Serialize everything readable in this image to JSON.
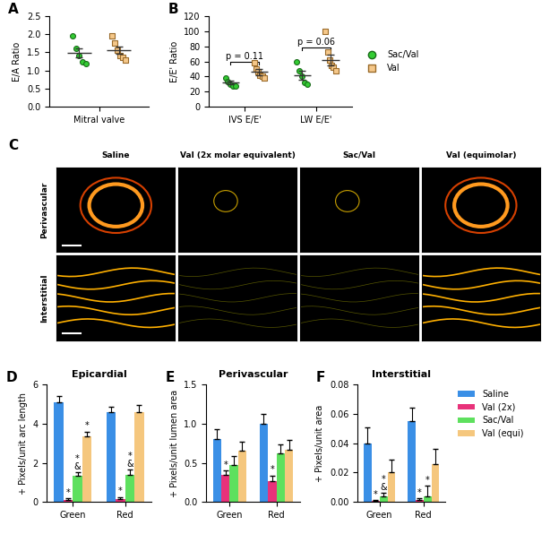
{
  "chart_data": [
    {
      "panel": "A",
      "type": "scatter",
      "categories": [
        "Mitral valve"
      ],
      "y_label": "E/A Ratio",
      "ylim": [
        0,
        2.5
      ],
      "yticks": [
        {
          "value": 0,
          "label": "0.0"
        },
        0.5,
        {
          "value": 1,
          "label": "1.0"
        },
        1.5,
        {
          "value": 2,
          "label": "2.0"
        },
        2.5
      ],
      "series": [
        {
          "name": "Sac/Val",
          "color": "#33cc33",
          "marker": "circle",
          "values": [
            [
              1.95,
              1.6,
              1.4,
              1.25,
              1.2
            ]
          ],
          "mean": [
            1.48
          ],
          "error": [
            0.13
          ]
        },
        {
          "name": "Val",
          "color": "#f5c88a",
          "marker": "square",
          "values": [
            [
              1.95,
              1.75,
              1.55,
              1.4,
              1.35,
              1.3
            ]
          ],
          "mean": [
            1.55
          ],
          "error": [
            0.1
          ]
        }
      ]
    },
    {
      "panel": "B",
      "type": "scatter",
      "categories": [
        "IVS E/E'",
        "LW E/E'"
      ],
      "y_label": "E/E' Ratio",
      "ylim": [
        0,
        120
      ],
      "yticks": [
        0,
        20,
        40,
        60,
        80,
        100,
        120
      ],
      "legend": "right",
      "annotations": [
        {
          "text": "p = 0.11",
          "category": 0
        },
        {
          "text": "p = 0.06",
          "category": 1
        }
      ],
      "series": [
        {
          "name": "Sac/Val",
          "color": "#33cc33",
          "marker": "circle",
          "values": [
            [
              38,
              33,
              30,
              28,
              27
            ],
            [
              60,
              48,
              40,
              32,
              30
            ]
          ],
          "mean": [
            32,
            42
          ],
          "error": [
            2.5,
            6
          ]
        },
        {
          "name": "Val",
          "color": "#f5c88a",
          "marker": "square",
          "values": [
            [
              58,
              50,
              47,
              42,
              40,
              38
            ],
            [
              100,
              72,
              62,
              55,
              52,
              48
            ]
          ],
          "mean": [
            46,
            62
          ],
          "error": [
            4,
            7
          ]
        }
      ]
    },
    {
      "panel": "D",
      "type": "bar",
      "title": "Epicardial",
      "y_label": "+ Pixels/unit arc length",
      "categories": [
        "Green",
        "Red"
      ],
      "ylim": [
        0,
        6
      ],
      "yticks": [
        0,
        2,
        4,
        6
      ],
      "series": [
        {
          "name": "Saline",
          "color": "#3a8fe6",
          "values": [
            5.1,
            4.6
          ],
          "error": [
            0.3,
            0.25
          ],
          "sig": [
            null,
            null
          ]
        },
        {
          "name": "Val (2x)",
          "color": "#e8327a",
          "values": [
            0.1,
            0.15
          ],
          "error": [
            0.1,
            0.1
          ],
          "sig": [
            [
              "*"
            ],
            [
              "*"
            ]
          ]
        },
        {
          "name": "Sac/Val",
          "color": "#5ee05e",
          "values": [
            1.35,
            1.4
          ],
          "error": [
            0.15,
            0.25
          ],
          "sig": [
            [
              "*",
              "&"
            ],
            [
              "*",
              "&"
            ]
          ]
        },
        {
          "name": "Val (equi)",
          "color": "#f5c77e",
          "values": [
            3.35,
            4.6
          ],
          "error": [
            0.25,
            0.35
          ],
          "sig": [
            [
              "*"
            ],
            null
          ]
        }
      ]
    },
    {
      "panel": "E",
      "type": "bar",
      "title": "Perivascular",
      "y_label": "+ Pixels/unit lumen area",
      "categories": [
        "Green",
        "Red"
      ],
      "ylim": [
        0,
        1.5
      ],
      "yticks": [
        {
          "value": 0,
          "label": "0.0"
        },
        0.5,
        {
          "value": 1,
          "label": "1.0"
        },
        1.5
      ],
      "series": [
        {
          "name": "Saline",
          "color": "#3a8fe6",
          "values": [
            0.8,
            1.0
          ],
          "error": [
            0.13,
            0.12
          ],
          "sig": [
            null,
            null
          ]
        },
        {
          "name": "Val (2x)",
          "color": "#e8327a",
          "values": [
            0.35,
            0.27
          ],
          "error": [
            0.05,
            0.07
          ],
          "sig": [
            [
              "*"
            ],
            [
              "*"
            ]
          ]
        },
        {
          "name": "Sac/Val",
          "color": "#5ee05e",
          "values": [
            0.47,
            0.62
          ],
          "error": [
            0.12,
            0.11
          ],
          "sig": [
            null,
            null
          ]
        },
        {
          "name": "Val (equi)",
          "color": "#f5c77e",
          "values": [
            0.65,
            0.67
          ],
          "error": [
            0.12,
            0.12
          ],
          "sig": [
            null,
            null
          ]
        }
      ]
    },
    {
      "panel": "F",
      "type": "bar",
      "title": "Interstitial",
      "y_label": "+ Pixels/unit area",
      "categories": [
        "Green",
        "Red"
      ],
      "ylim": [
        0,
        0.08
      ],
      "yticks": [
        {
          "value": 0,
          "label": "0.00"
        },
        0.02,
        0.04,
        0.06,
        {
          "value": 0.08,
          "label": "0.08"
        }
      ],
      "legend": "right",
      "series": [
        {
          "name": "Saline",
          "color": "#3a8fe6",
          "values": [
            0.04,
            0.055
          ],
          "error": [
            0.011,
            0.009
          ],
          "sig": [
            null,
            null
          ]
        },
        {
          "name": "Val (2x)",
          "color": "#e8327a",
          "values": [
            0.0008,
            0.0015
          ],
          "error": [
            0.0005,
            0.001
          ],
          "sig": [
            [
              "*"
            ],
            [
              "*"
            ]
          ]
        },
        {
          "name": "Sac/Val",
          "color": "#5ee05e",
          "values": [
            0.004,
            0.004
          ],
          "error": [
            0.002,
            0.007
          ],
          "sig": [
            [
              "*",
              "&"
            ],
            [
              "*"
            ]
          ]
        },
        {
          "name": "Val (equi)",
          "color": "#f5c77e",
          "values": [
            0.02,
            0.026
          ],
          "error": [
            0.009,
            0.01
          ],
          "sig": [
            null,
            null
          ]
        }
      ]
    }
  ],
  "image_grid": {
    "panel": "C",
    "columns": [
      "Saline",
      "Val (2x molar equivalent)",
      "Sac/Val",
      "Val (equimolar)"
    ],
    "rows": [
      "Perivascular",
      "Interstitial"
    ]
  }
}
